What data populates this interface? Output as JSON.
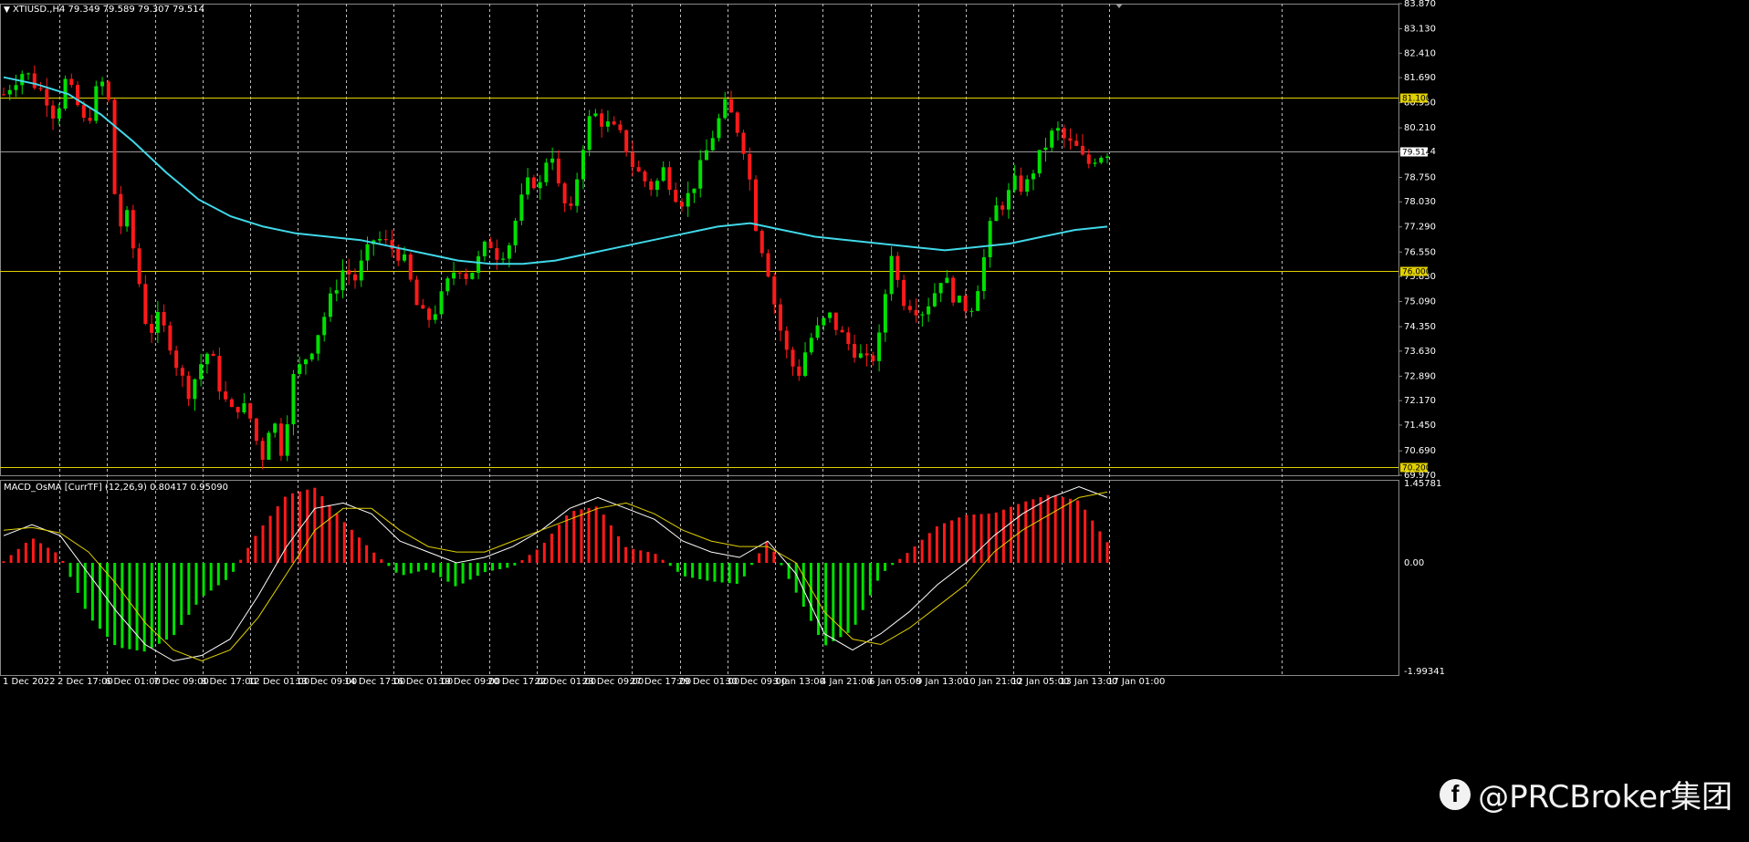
{
  "header": {
    "symbol_line": "XTIUSD.,H4  79.349 79.589 79.307 79.514"
  },
  "indicator_header": "MACD_OsMA [CurrTF] (12,26,9) 0.80417 0.95090",
  "watermark": "@PRCBroker集团",
  "colors": {
    "bull": "#00e000",
    "bear": "#ff1a1a",
    "ma": "#40d8e8",
    "level": "#e0d000",
    "macd_line": "#ffffff",
    "signal_line": "#e0d000",
    "hist_pos": "#ff1a1a",
    "hist_neg": "#00e000"
  },
  "chart_data": [
    {
      "type": "candlestick",
      "title": "XTIUSD.,H4",
      "ylim": [
        69.97,
        83.87
      ],
      "price_ticks": [
        "83.870",
        "83.130",
        "82.410",
        "81.690",
        "80.950",
        "80.210",
        "79.514",
        "78.750",
        "78.030",
        "77.290",
        "76.550",
        "75.830",
        "75.090",
        "74.350",
        "73.630",
        "72.890",
        "72.170",
        "71.450",
        "70.690",
        "69.970"
      ],
      "current_price": "79.514",
      "horizontal_levels": [
        "81.100",
        "76.000",
        "70.200"
      ],
      "time_labels": [
        "1 Dec 2022",
        "2 Dec 17:00",
        "6 Dec 01:00",
        "7 Dec 09:00",
        "8 Dec 17:00",
        "12 Dec 01:00",
        "13 Dec 09:00",
        "14 Dec 17:00",
        "16 Dec 01:00",
        "19 Dec 09:00",
        "20 Dec 17:00",
        "22 Dec 01:00",
        "23 Dec 09:00",
        "27 Dec 17:00",
        "29 Dec 01:00",
        "30 Dec 09:00",
        "3 Jan 13:00",
        "4 Jan 21:00",
        "6 Jan 05:00",
        "9 Jan 13:00",
        "10 Jan 21:00",
        "12 Jan 05:00",
        "13 Jan 13:00",
        "17 Jan 01:00"
      ],
      "close_path": [
        81.2,
        81.6,
        81.9,
        81.5,
        81.2,
        80.5,
        81.6,
        81.0,
        80.2,
        81.3,
        81.7,
        77.2,
        77.6,
        75.9,
        74.1,
        74.6,
        74.0,
        73.0,
        72.4,
        73.2,
        73.7,
        72.5,
        71.8,
        72.1,
        71.6,
        70.4,
        71.8,
        70.6,
        72.8,
        73.3,
        73.8,
        74.6,
        75.4,
        76.1,
        75.7,
        76.4,
        77.0,
        76.8,
        76.6,
        76.2,
        75.0,
        74.5,
        74.9,
        75.6,
        76.2,
        75.8,
        76.3,
        76.9,
        76.4,
        76.8,
        77.9,
        78.7,
        78.5,
        79.8,
        78.1,
        77.7,
        79.5,
        80.7,
        80.4,
        80.2,
        79.9,
        79.1,
        78.7,
        78.4,
        79.0,
        78.3,
        78.0,
        78.6,
        79.4,
        80.2,
        80.9,
        80.3,
        79.4,
        77.2,
        76.2,
        74.6,
        73.5,
        72.9,
        73.9,
        74.3,
        74.7,
        74.2,
        73.8,
        73.5,
        73.2,
        74.1,
        76.7,
        75.2,
        75.0,
        74.8,
        75.2,
        75.9,
        75.3,
        74.9,
        75.0,
        76.3,
        77.8,
        78.0,
        78.6,
        78.4,
        79.1,
        79.7,
        80.2,
        79.8,
        79.6,
        79.1,
        79.4,
        79.514
      ],
      "ma_values": [
        81.7,
        81.5,
        81.2,
        80.6,
        79.8,
        78.9,
        78.1,
        77.6,
        77.3,
        77.1,
        77.0,
        76.9,
        76.7,
        76.5,
        76.3,
        76.2,
        76.2,
        76.3,
        76.5,
        76.7,
        76.9,
        77.1,
        77.3,
        77.4,
        77.2,
        77.0,
        76.9,
        76.8,
        76.7,
        76.6,
        76.7,
        76.8,
        77.0,
        77.2,
        77.3
      ]
    },
    {
      "type": "bar",
      "title": "MACD_OsMA [CurrTF] (12,26,9)",
      "ylim": [
        -1.99341,
        1.45781
      ],
      "ticks": [
        "1.45781",
        "0.00",
        "-1.99341"
      ],
      "series": [
        {
          "name": "MACD",
          "values": [
            0.5,
            0.7,
            0.5,
            -0.2,
            -0.9,
            -1.5,
            -1.8,
            -1.7,
            -1.4,
            -0.6,
            0.3,
            1.0,
            1.1,
            0.9,
            0.4,
            0.2,
            0.0,
            0.1,
            0.3,
            0.6,
            1.0,
            1.2,
            1.0,
            0.8,
            0.4,
            0.2,
            0.1,
            0.4,
            -0.2,
            -1.3,
            -1.6,
            -1.3,
            -0.9,
            -0.4,
            0.0,
            0.5,
            0.9,
            1.2,
            1.4,
            1.2
          ]
        },
        {
          "name": "Signal",
          "values": [
            0.6,
            0.65,
            0.55,
            0.2,
            -0.4,
            -1.1,
            -1.6,
            -1.8,
            -1.6,
            -1.0,
            -0.2,
            0.6,
            1.0,
            1.0,
            0.6,
            0.3,
            0.2,
            0.2,
            0.4,
            0.6,
            0.8,
            1.0,
            1.1,
            0.9,
            0.6,
            0.4,
            0.3,
            0.3,
            0.0,
            -0.9,
            -1.4,
            -1.5,
            -1.2,
            -0.8,
            -0.4,
            0.2,
            0.6,
            0.9,
            1.2,
            1.3
          ]
        }
      ]
    }
  ]
}
